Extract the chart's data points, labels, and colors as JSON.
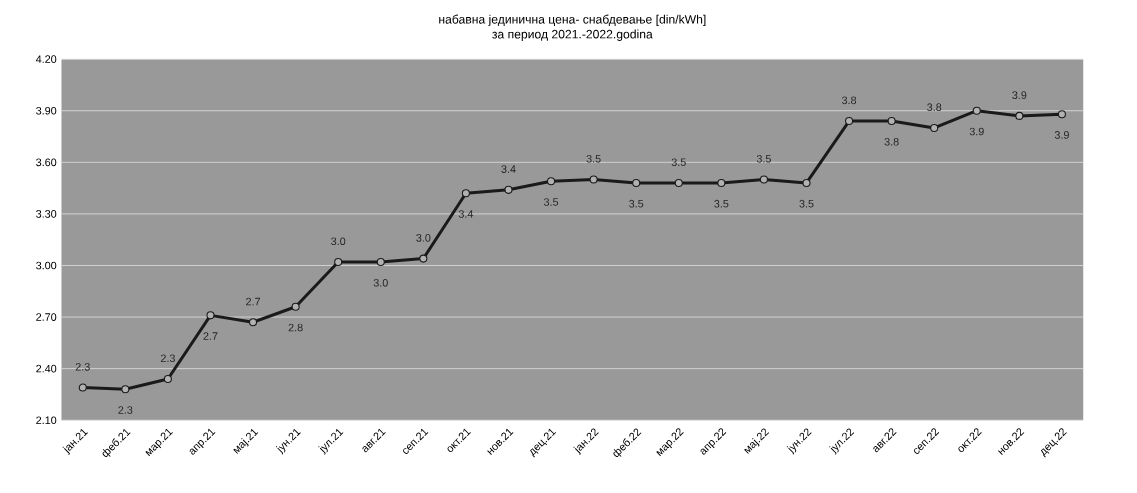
{
  "chart_data": {
    "type": "line",
    "title": "набавна јединична цена- снабдевање [din/kWh]",
    "subtitle": "за период 2021.-2022.godina",
    "categories": [
      "јан.21",
      "феб.21",
      "мар.21",
      "апр.21",
      "мај.21",
      "јун.21",
      "јул.21",
      "авг.21",
      "сеп.21",
      "окт.21",
      "нов.21",
      "дец.21",
      "јан.22",
      "феб.22",
      "мар.22",
      "апр.22",
      "мај.22",
      "јун.22",
      "јул.22",
      "авг.22",
      "сеп.22",
      "окт.22",
      "нов.22",
      "дец.22"
    ],
    "series": [
      {
        "color": "#1a1a1a",
        "values": [
          2.29,
          2.28,
          2.34,
          2.71,
          2.67,
          2.76,
          3.02,
          3.02,
          3.04,
          3.42,
          3.44,
          3.49,
          3.5,
          3.48,
          3.48,
          3.48,
          3.5,
          3.48,
          3.84,
          3.84,
          3.8,
          3.9,
          3.87,
          3.88
        ],
        "value_labels": [
          "2.3",
          "2.3",
          "2.3",
          "2.7",
          "2.7",
          "2.8",
          "3.0",
          "3.0",
          "3.0",
          "3.4",
          "3.4",
          "3.5",
          "3.5",
          "3.5",
          "3.5",
          "3.5",
          "3.5",
          "3.5",
          "3.8",
          "3.8",
          "3.8",
          "3.9",
          "3.9",
          "3.9"
        ]
      }
    ],
    "ylim": [
      2.1,
      4.2
    ],
    "yticks": [
      {
        "value": 2.1,
        "label": "2.10"
      },
      {
        "value": 2.4,
        "label": "2.40"
      },
      {
        "value": 2.7,
        "label": "2.70"
      },
      {
        "value": 3.0,
        "label": "3.00"
      },
      {
        "value": 3.3,
        "label": "3.30"
      },
      {
        "value": 3.6,
        "label": "3.60"
      },
      {
        "value": 3.9,
        "label": "3.90"
      },
      {
        "value": 4.2,
        "label": "4.20"
      }
    ],
    "grid": "y",
    "marker": "circle",
    "line_style": "solid"
  }
}
